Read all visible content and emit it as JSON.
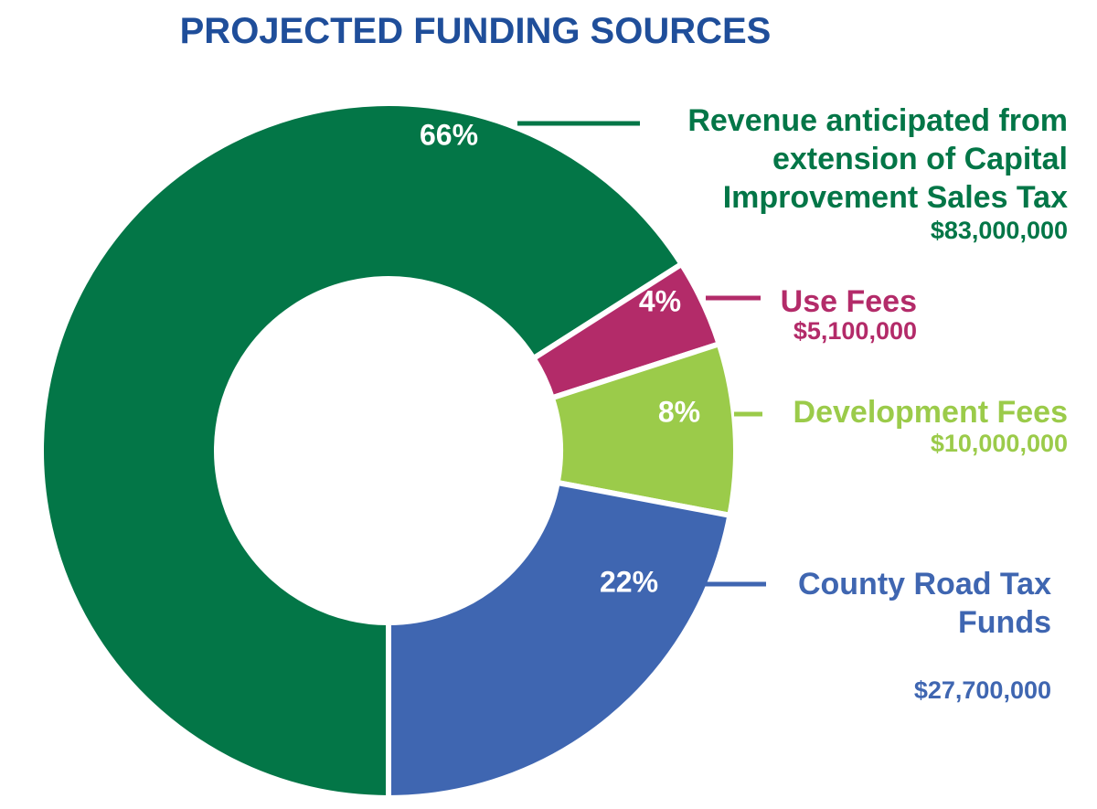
{
  "chart_data": {
    "type": "pie",
    "donut": true,
    "title": "PROJECTED FUNDING SOURCES",
    "start_angle_deg": 180,
    "direction": "clockwise",
    "slices": [
      {
        "name_lines": [
          "Revenue anticipated from",
          "extension of Capital",
          "Improvement Sales Tax"
        ],
        "value": 83000000,
        "value_label": "$83,000,000",
        "percent_label": "66%",
        "color": "#037647"
      },
      {
        "name_lines": [
          "Use Fees"
        ],
        "value": 5100000,
        "value_label": "$5,100,000",
        "percent_label": "4%",
        "color": "#B32B69"
      },
      {
        "name_lines": [
          "Development Fees"
        ],
        "value": 10000000,
        "value_label": "$10,000,000",
        "percent_label": "8%",
        "color": "#9BCB4A"
      },
      {
        "name_lines": [
          "County Road Tax",
          "Funds"
        ],
        "value": 27700000,
        "value_label": "$27,700,000",
        "percent_label": "22%",
        "color": "#3F66B1"
      }
    ]
  },
  "colors": {
    "title": "#1F4E9A",
    "background": "#FFFFFF"
  }
}
